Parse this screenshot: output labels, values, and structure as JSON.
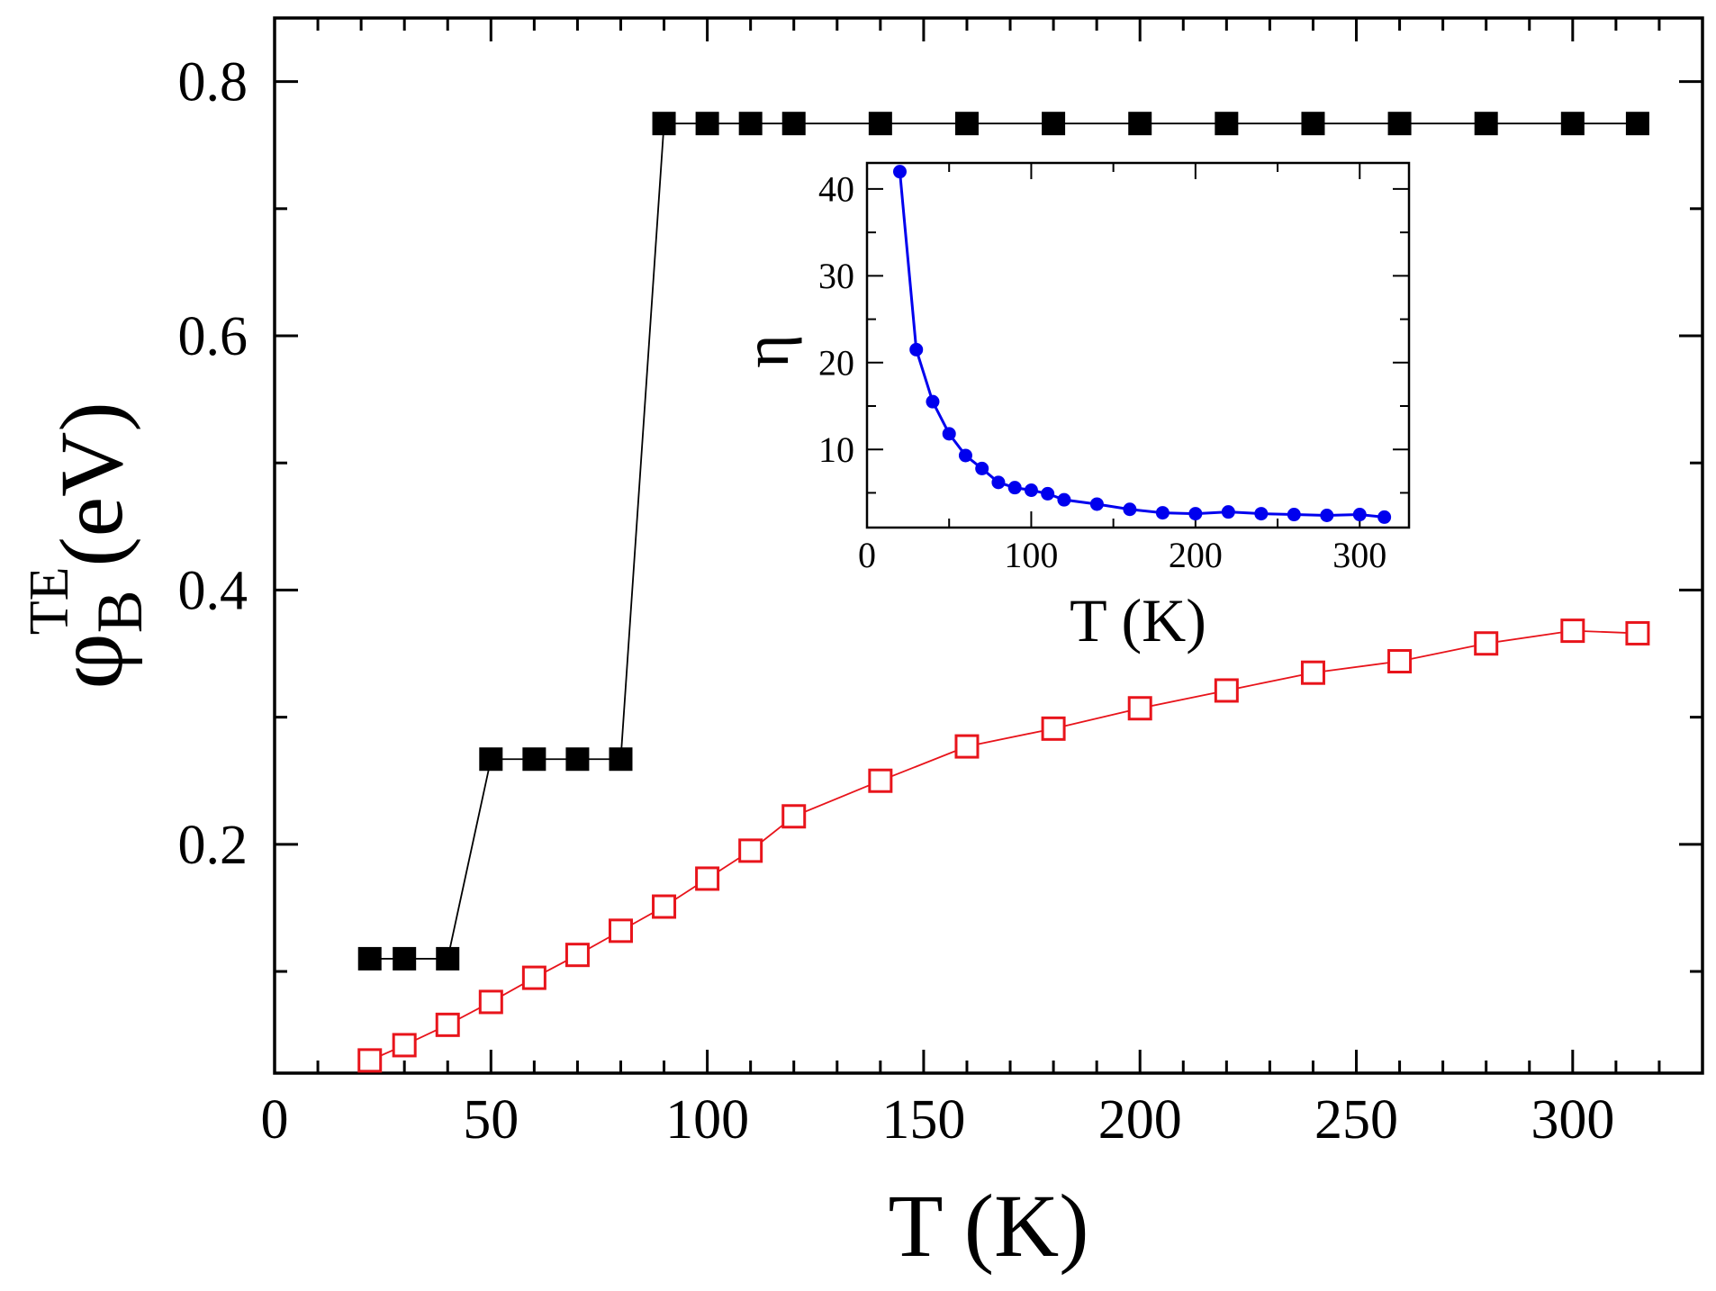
{
  "chart_data": [
    {
      "id": "main",
      "type": "scatter",
      "title": "",
      "xlabel": "T (K)",
      "ylabel": {
        "symbol": "φ",
        "subscript": "B",
        "superscript": "TE",
        "unit": "(eV)"
      },
      "xlim": [
        0,
        330
      ],
      "ylim": [
        0.02,
        0.85
      ],
      "xticks": [
        0,
        50,
        100,
        150,
        200,
        250,
        300
      ],
      "xtick_labels": [
        "0",
        "50",
        "100",
        "150",
        "200",
        "250",
        "300"
      ],
      "xminor": [
        10,
        20,
        30,
        40,
        60,
        70,
        80,
        90,
        110,
        120,
        130,
        140,
        160,
        170,
        180,
        190,
        210,
        220,
        230,
        240,
        260,
        270,
        280,
        290,
        310,
        320
      ],
      "yticks": [
        0.2,
        0.4,
        0.6,
        0.8
      ],
      "ytick_labels": [
        "0.2",
        "0.4",
        "0.6",
        "0.8"
      ],
      "yminor": [
        0.1,
        0.3,
        0.5,
        0.7
      ],
      "grid": false,
      "series": [
        {
          "name": "black filled squares",
          "color": "#000000",
          "marker": "filled-square",
          "line": "segmented",
          "x": [
            22,
            30,
            40,
            50,
            60,
            70,
            80,
            90,
            100,
            110,
            120,
            140,
            160,
            180,
            200,
            220,
            240,
            260,
            280,
            300,
            315
          ],
          "y": [
            0.11,
            0.11,
            0.11,
            0.267,
            0.267,
            0.267,
            0.267,
            0.767,
            0.767,
            0.767,
            0.767,
            0.767,
            0.767,
            0.767,
            0.767,
            0.767,
            0.767,
            0.767,
            0.767,
            0.767,
            0.767
          ]
        },
        {
          "name": "red open squares",
          "color": "#e8141b",
          "marker": "open-square",
          "line": "connected",
          "x": [
            22,
            30,
            40,
            50,
            60,
            70,
            80,
            90,
            100,
            110,
            120,
            140,
            160,
            180,
            200,
            220,
            240,
            260,
            280,
            300,
            315
          ],
          "y": [
            0.03,
            0.042,
            0.058,
            0.076,
            0.095,
            0.113,
            0.132,
            0.151,
            0.173,
            0.195,
            0.222,
            0.25,
            0.277,
            0.291,
            0.307,
            0.321,
            0.335,
            0.344,
            0.358,
            0.368,
            0.366
          ]
        }
      ]
    },
    {
      "id": "inset",
      "type": "line",
      "title": "",
      "xlabel": "T (K)",
      "ylabel": "η",
      "xlim": [
        0,
        330
      ],
      "ylim": [
        1,
        43
      ],
      "xticks": [
        0,
        100,
        200,
        300
      ],
      "xtick_labels": [
        "0",
        "100",
        "200",
        "300"
      ],
      "xminor": [
        50,
        150,
        250
      ],
      "yticks": [
        10,
        20,
        30,
        40
      ],
      "ytick_labels": [
        "10",
        "20",
        "30",
        "40"
      ],
      "yminor": [
        5,
        15,
        25,
        35
      ],
      "grid": false,
      "series": [
        {
          "name": "eta",
          "color": "#0000ee",
          "marker": "filled-circle",
          "x": [
            20,
            30,
            40,
            50,
            60,
            70,
            80,
            90,
            100,
            110,
            120,
            140,
            160,
            180,
            200,
            220,
            240,
            260,
            280,
            300,
            315
          ],
          "y": [
            42.0,
            21.5,
            15.5,
            11.8,
            9.3,
            7.8,
            6.2,
            5.6,
            5.3,
            4.9,
            4.2,
            3.7,
            3.1,
            2.7,
            2.6,
            2.8,
            2.6,
            2.5,
            2.4,
            2.5,
            2.2
          ]
        }
      ]
    }
  ]
}
